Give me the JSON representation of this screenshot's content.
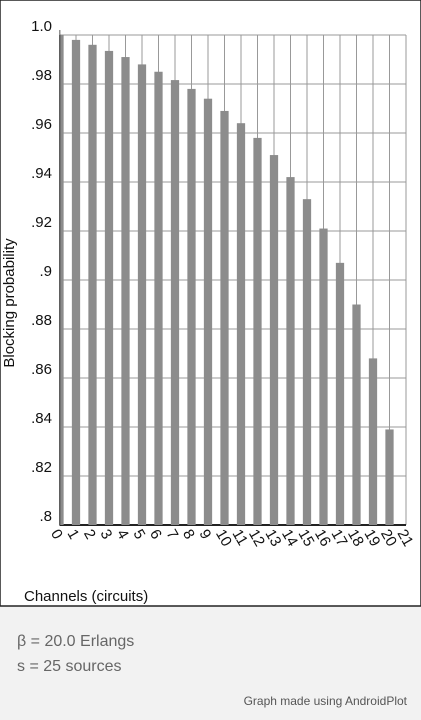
{
  "chart_data": {
    "type": "bar",
    "x_label": "Channels (circuits)",
    "y_label": "Blocking probability",
    "x": [
      0,
      1,
      2,
      3,
      4,
      5,
      6,
      7,
      8,
      9,
      10,
      11,
      12,
      13,
      14,
      15,
      16,
      17,
      18,
      19,
      20
    ],
    "values": [
      1.0,
      0.998,
      0.996,
      0.9935,
      0.991,
      0.988,
      0.985,
      0.9816,
      0.978,
      0.974,
      0.969,
      0.964,
      0.958,
      0.951,
      0.942,
      0.933,
      0.921,
      0.907,
      0.89,
      0.868,
      0.839
    ],
    "color": "#8c8c8c",
    "xlim": [
      0,
      21
    ],
    "xticks": [
      0,
      1,
      2,
      3,
      4,
      5,
      6,
      7,
      8,
      9,
      10,
      11,
      12,
      13,
      14,
      15,
      16,
      17,
      18,
      19,
      20,
      21
    ],
    "ylim": [
      0.8,
      1.0
    ],
    "yticks": [
      {
        "value": 0.8,
        "label": ".8"
      },
      {
        "value": 0.82,
        "label": ".82"
      },
      {
        "value": 0.84,
        "label": ".84"
      },
      {
        "value": 0.86,
        "label": ".86"
      },
      {
        "value": 0.88,
        "label": ".88"
      },
      {
        "value": 0.9,
        "label": ".9"
      },
      {
        "value": 0.92,
        "label": ".92"
      },
      {
        "value": 0.94,
        "label": ".94"
      },
      {
        "value": 0.96,
        "label": ".96"
      },
      {
        "value": 0.98,
        "label": ".98"
      },
      {
        "value": 1.0,
        "label": "1.0"
      }
    ],
    "grid": true
  },
  "notes": [
    "β = 20.0 Erlangs",
    "s = 25 sources"
  ],
  "credit": "Graph made using AndroidPlot"
}
